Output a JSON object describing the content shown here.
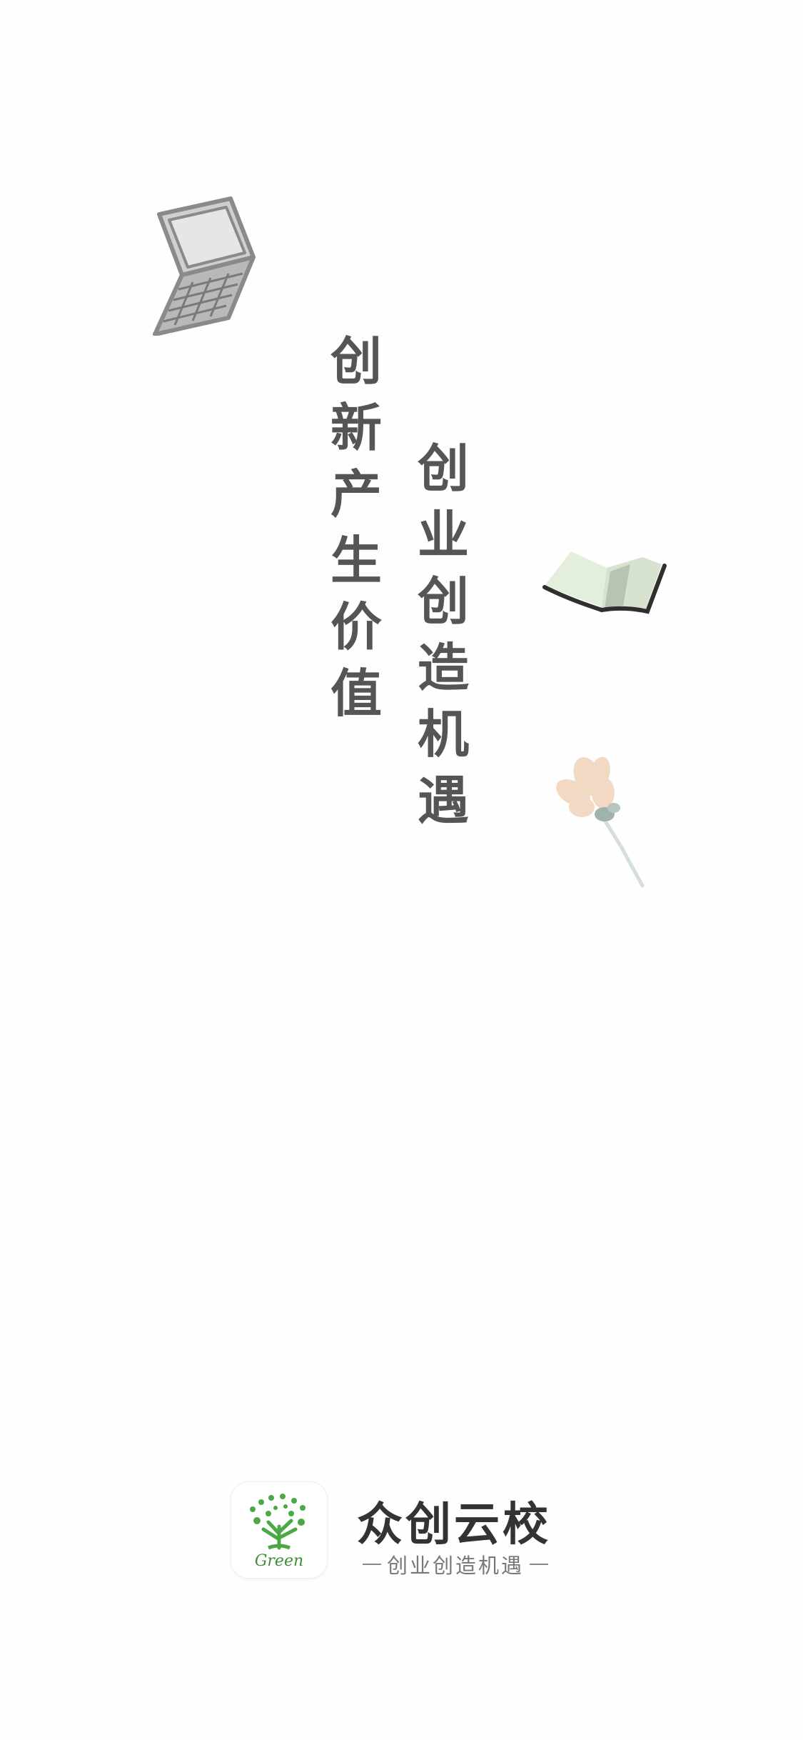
{
  "slogan": {
    "left_column": [
      "创",
      "新",
      "产",
      "生",
      "价",
      "值"
    ],
    "right_column": [
      "创",
      "业",
      "创",
      "造",
      "机",
      "遇"
    ]
  },
  "illustrations": {
    "laptop": "laptop-illustration",
    "book": "open-book-illustration",
    "flower": "flower-illustration"
  },
  "brand": {
    "icon_caption": "Green",
    "name": "众创云校",
    "tagline": "创业创造机遇"
  },
  "colors": {
    "slogan_text": "#555555",
    "brand_text": "#333333",
    "tagline_text": "#777777",
    "icon_green": "#3f8f3a"
  }
}
